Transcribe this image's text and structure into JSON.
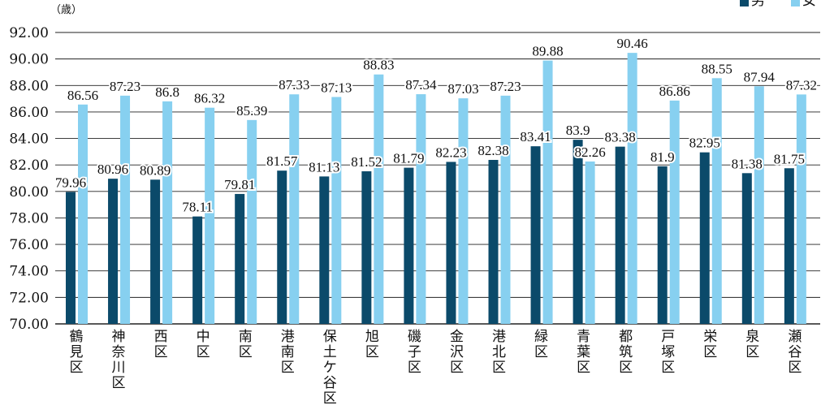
{
  "chart_data": {
    "type": "bar",
    "ylabel": "（歳）",
    "ylim": [
      70,
      92
    ],
    "yticks": [
      "70.00",
      "72.00",
      "74.00",
      "76.00",
      "78.00",
      "80.00",
      "82.00",
      "84.00",
      "86.00",
      "88.00",
      "90.00",
      "92.00"
    ],
    "grid": true,
    "legend_position": "top-right",
    "categories": [
      "鶴見区",
      "神奈川区",
      "西区",
      "中区",
      "南区",
      "港南区",
      "保土ケ谷区",
      "旭区",
      "磯子区",
      "金沢区",
      "港北区",
      "緑区",
      "青葉区",
      "都筑区",
      "戸塚区",
      "栄区",
      "泉区",
      "瀬谷区"
    ],
    "series": [
      {
        "name": "男",
        "color": "#0b4a6a",
        "values": [
          79.96,
          80.96,
          80.89,
          78.11,
          79.81,
          81.57,
          81.13,
          81.52,
          81.79,
          82.23,
          82.38,
          83.41,
          83.9,
          83.38,
          81.9,
          82.95,
          81.38,
          81.75
        ],
        "labels": [
          "79.96",
          "80.96",
          "80.89",
          "78.11",
          "79.81",
          "81.57",
          "81.13",
          "81.52",
          "81.79",
          "82.23",
          "82.38",
          "83.41",
          "83.9",
          "83.38",
          "81.9",
          "82.95",
          "81.38",
          "81.75"
        ]
      },
      {
        "name": "女",
        "color": "#87d0f0",
        "values": [
          86.56,
          87.23,
          86.8,
          86.32,
          85.39,
          87.33,
          87.13,
          88.83,
          87.34,
          87.03,
          87.23,
          89.88,
          82.26,
          90.46,
          86.86,
          88.55,
          87.94,
          87.32
        ],
        "labels": [
          "86.56",
          "87.23",
          "86.8",
          "86.32",
          "85.39",
          "87.33",
          "87.13",
          "88.83",
          "87.34",
          "87.03",
          "87.23",
          "89.88",
          "82.26",
          "90.46",
          "86.86",
          "88.55",
          "87.94",
          "87.32"
        ]
      }
    ]
  }
}
